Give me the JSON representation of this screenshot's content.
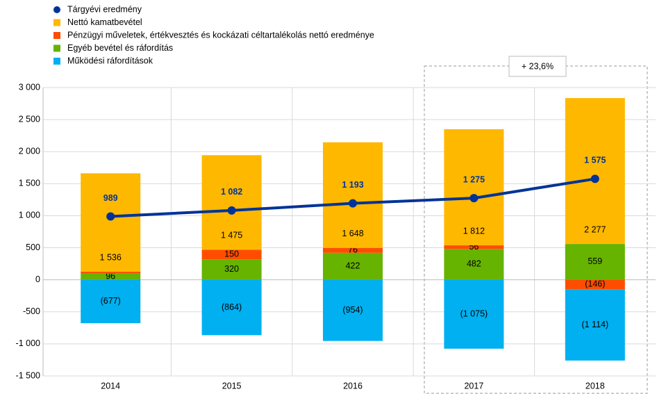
{
  "chart_data": {
    "type": "bar",
    "stacked": true,
    "categories": [
      "2014",
      "2015",
      "2016",
      "2017",
      "2018"
    ],
    "series": [
      {
        "name": "Tárgyévi eredmény",
        "type": "line",
        "color": "#003399",
        "values": [
          989,
          1082,
          1193,
          1275,
          1575
        ],
        "value_labels": [
          "989",
          "1 082",
          "1 193",
          "1 275",
          "1 575"
        ]
      },
      {
        "name": "Nettó kamatbevétel",
        "color": "#ffb800",
        "values": [
          1536,
          1475,
          1648,
          1812,
          2277
        ],
        "value_labels": [
          "1 536",
          "1 475",
          "1 648",
          "1 812",
          "2 277"
        ]
      },
      {
        "name": "Pénzügyi műveletek, értékvesztés és kockázati céltartalékolás nettó eredménye",
        "color": "#ff4d00",
        "values": [
          30,
          150,
          76,
          56,
          -146
        ],
        "value_labels": [
          null,
          "150",
          "76",
          "56",
          "(146)"
        ]
      },
      {
        "name": "Egyéb bevétel és ráfordítás",
        "color": "#66b300",
        "values": [
          96,
          320,
          422,
          482,
          559
        ]
      },
      {
        "name": "Működési ráfordítások",
        "color": "#00b0f0",
        "values": [
          -677,
          -864,
          -954,
          -1075,
          -1114
        ],
        "value_labels": [
          "(677)",
          "(864)",
          "(954)",
          "(1 075)",
          "(1 114)"
        ]
      }
    ],
    "stack_order": [
      3,
      2,
      1,
      4
    ],
    "ylim": [
      -1500,
      3000
    ],
    "yticks": [
      {
        "value": -1500,
        "label": "-1 500"
      },
      {
        "value": -1000,
        "label": "-1 000"
      },
      -500,
      0,
      500,
      {
        "value": 1000,
        "label": "1 000"
      },
      {
        "value": 1500,
        "label": "1 500"
      },
      {
        "value": 2000,
        "label": "2 000"
      },
      {
        "value": 2500,
        "label": "2 500"
      },
      {
        "value": 3000,
        "label": "3 000"
      }
    ],
    "grid": true,
    "annotation": "+ 23,6%",
    "annotation_color": "#e8161b"
  }
}
